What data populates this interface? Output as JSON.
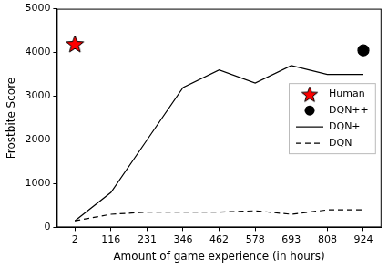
{
  "chart_data": {
    "type": "line",
    "x_label": "Amount of game experience (in hours)",
    "y_label": "Frostbite Score",
    "categories": [
      "2",
      "116",
      "231",
      "346",
      "462",
      "578",
      "693",
      "808",
      "924"
    ],
    "ylim": [
      0,
      5000
    ],
    "yticks": [
      0,
      1000,
      2000,
      3000,
      4000,
      5000
    ],
    "grid": false,
    "legend": "right",
    "series": [
      {
        "name": "Human",
        "type": "scatter",
        "marker": "star",
        "color": "#ff0000",
        "values": [
          4200,
          null,
          null,
          null,
          null,
          null,
          null,
          null,
          null
        ]
      },
      {
        "name": "DQN++",
        "type": "scatter",
        "marker": "circle",
        "color": "#000000",
        "values": [
          null,
          null,
          null,
          null,
          null,
          null,
          null,
          null,
          4050
        ]
      },
      {
        "name": "DQN+",
        "type": "line",
        "line_style": "solid",
        "color": "#000000",
        "values": [
          150,
          800,
          2000,
          3200,
          3600,
          3300,
          3700,
          3500,
          3500
        ]
      },
      {
        "name": "DQN",
        "type": "line",
        "line_style": "dashed",
        "color": "#000000",
        "values": [
          150,
          300,
          350,
          350,
          350,
          380,
          300,
          400,
          400
        ]
      }
    ]
  }
}
